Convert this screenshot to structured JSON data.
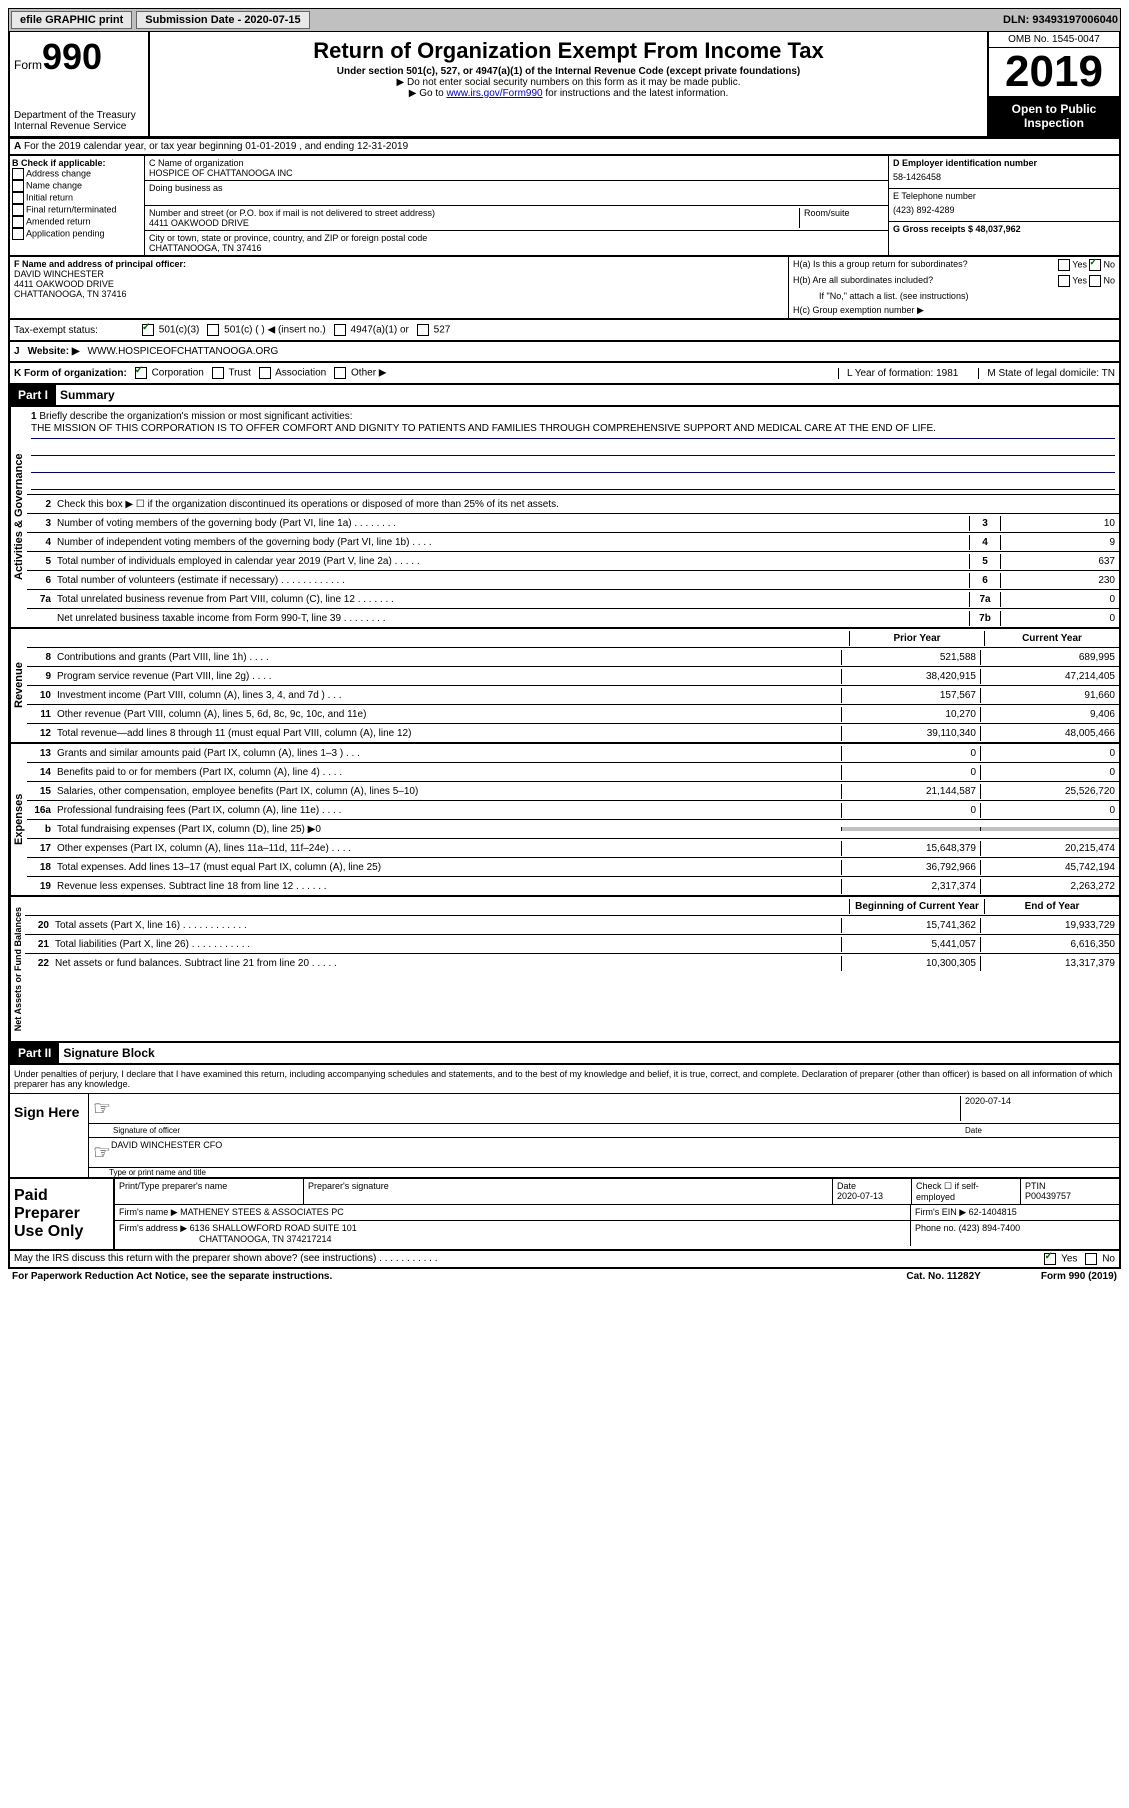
{
  "top_bar": {
    "efile": "efile GRAPHIC print",
    "submission_label": "Submission Date - 2020-07-15",
    "dln": "DLN: 93493197006040"
  },
  "header": {
    "form_label": "Form",
    "form_number": "990",
    "title": "Return of Organization Exempt From Income Tax",
    "subtitle": "Under section 501(c), 527, or 4947(a)(1) of the Internal Revenue Code (except private foundations)",
    "instr1": "▶ Do not enter social security numbers on this form as it may be made public.",
    "instr2_pre": "▶ Go to ",
    "instr2_link": "www.irs.gov/Form990",
    "instr2_post": " for instructions and the latest information.",
    "dept": "Department of the Treasury\nInternal Revenue Service",
    "omb": "OMB No. 1545-0047",
    "year": "2019",
    "open_public": "Open to Public Inspection"
  },
  "section_a": "For the 2019 calendar year, or tax year beginning 01-01-2019    , and ending 12-31-2019",
  "section_b": {
    "label": "B Check if applicable:",
    "opts": [
      "Address change",
      "Name change",
      "Initial return",
      "Final return/terminated",
      "Amended return",
      "Application pending"
    ]
  },
  "section_c": {
    "name_label": "C Name of organization",
    "name": "HOSPICE OF CHATTANOOGA INC",
    "dba_label": "Doing business as",
    "addr_label": "Number and street (or P.O. box if mail is not delivered to street address)",
    "room_label": "Room/suite",
    "addr": "4411 OAKWOOD DRIVE",
    "city_label": "City or town, state or province, country, and ZIP or foreign postal code",
    "city": "CHATTANOOGA, TN  37416"
  },
  "section_d": {
    "ein_label": "D Employer identification number",
    "ein": "58-1426458",
    "phone_label": "E Telephone number",
    "phone": "(423) 892-4289",
    "gross_label": "G Gross receipts $ 48,037,962"
  },
  "section_f": {
    "label": "F  Name and address of principal officer:",
    "name": "DAVID WINCHESTER",
    "addr1": "4411 OAKWOOD DRIVE",
    "addr2": "CHATTANOOGA, TN  37416"
  },
  "section_h": {
    "ha": "H(a)  Is this a group return for subordinates?",
    "hb": "H(b)  Are all subordinates included?",
    "hb_note": "If \"No,\" attach a list. (see instructions)",
    "hc": "H(c)  Group exemption number ▶",
    "yes": "Yes",
    "no": "No"
  },
  "tax_exempt": {
    "label": "Tax-exempt status:",
    "o1": "501(c)(3)",
    "o2": "501(c) (   ) ◀ (insert no.)",
    "o3": "4947(a)(1) or",
    "o4": "527"
  },
  "website": {
    "label": "Website: ▶",
    "value": "WWW.HOSPICEOFCHATTANOOGA.ORG"
  },
  "form_org": {
    "k_label": "K Form of organization:",
    "corp": "Corporation",
    "trust": "Trust",
    "assoc": "Association",
    "other": "Other ▶",
    "l_label": "L Year of formation: 1981",
    "m_label": "M State of legal domicile: TN"
  },
  "part1": {
    "header": "Part I",
    "title": "Summary",
    "vert_activities": "Activities & Governance",
    "vert_revenue": "Revenue",
    "vert_expenses": "Expenses",
    "vert_netassets": "Net Assets or Fund Balances",
    "line1_label": "Briefly describe the organization's mission or most significant activities:",
    "line1_text": "THE MISSION OF THIS CORPORATION IS TO OFFER COMFORT AND DIGNITY TO PATIENTS AND FAMILIES THROUGH COMPREHENSIVE SUPPORT AND MEDICAL CARE AT THE END OF LIFE.",
    "line2": "Check this box ▶ ☐  if the organization discontinued its operations or disposed of more than 25% of its net assets.",
    "lines_ag": [
      {
        "n": "3",
        "t": "Number of voting members of the governing body (Part VI, line 1a)   .    .    .    .    .    .    .    .",
        "b": "3",
        "v": "10"
      },
      {
        "n": "4",
        "t": "Number of independent voting members of the governing body (Part VI, line 1b)   .    .    .    .",
        "b": "4",
        "v": "9"
      },
      {
        "n": "5",
        "t": "Total number of individuals employed in calendar year 2019 (Part V, line 2a)   .    .    .    .    .",
        "b": "5",
        "v": "637"
      },
      {
        "n": "6",
        "t": "Total number of volunteers (estimate if necessary)    .    .    .    .    .    .    .    .    .    .    .    .",
        "b": "6",
        "v": "230"
      },
      {
        "n": "7a",
        "t": "Total unrelated business revenue from Part VIII, column (C), line 12   .    .    .    .    .    .    .",
        "b": "7a",
        "v": "0"
      },
      {
        "n": "",
        "t": "Net unrelated business taxable income from Form 990-T, line 39   .    .    .    .    .    .    .    .",
        "b": "7b",
        "v": "0"
      }
    ],
    "col_prior": "Prior Year",
    "col_current": "Current Year",
    "revenue_lines": [
      {
        "n": "8",
        "t": "Contributions and grants (Part VIII, line 1h)   .    .    .    .",
        "p": "521,588",
        "c": "689,995"
      },
      {
        "n": "9",
        "t": "Program service revenue (Part VIII, line 2g)   .    .    .    .",
        "p": "38,420,915",
        "c": "47,214,405"
      },
      {
        "n": "10",
        "t": "Investment income (Part VIII, column (A), lines 3, 4, and 7d )    .    .    .",
        "p": "157,567",
        "c": "91,660"
      },
      {
        "n": "11",
        "t": "Other revenue (Part VIII, column (A), lines 5, 6d, 8c, 9c, 10c, and 11e)",
        "p": "10,270",
        "c": "9,406"
      },
      {
        "n": "12",
        "t": "Total revenue—add lines 8 through 11 (must equal Part VIII, column (A), line 12)",
        "p": "39,110,340",
        "c": "48,005,466"
      }
    ],
    "expense_lines": [
      {
        "n": "13",
        "t": "Grants and similar amounts paid (Part IX, column (A), lines 1–3 )   .    .    .",
        "p": "0",
        "c": "0"
      },
      {
        "n": "14",
        "t": "Benefits paid to or for members (Part IX, column (A), line 4)   .    .    .    .",
        "p": "0",
        "c": "0"
      },
      {
        "n": "15",
        "t": "Salaries, other compensation, employee benefits (Part IX, column (A), lines 5–10)",
        "p": "21,144,587",
        "c": "25,526,720"
      },
      {
        "n": "16a",
        "t": "Professional fundraising fees (Part IX, column (A), line 11e)   .    .    .    .",
        "p": "0",
        "c": "0"
      },
      {
        "n": "b",
        "t": "Total fundraising expenses (Part IX, column (D), line 25) ▶0",
        "p": "",
        "c": "",
        "shaded": true
      },
      {
        "n": "17",
        "t": "Other expenses (Part IX, column (A), lines 11a–11d, 11f–24e)   .    .    .    .",
        "p": "15,648,379",
        "c": "20,215,474"
      },
      {
        "n": "18",
        "t": "Total expenses. Add lines 13–17 (must equal Part IX, column (A), line 25)",
        "p": "36,792,966",
        "c": "45,742,194"
      },
      {
        "n": "19",
        "t": "Revenue less expenses. Subtract line 18 from line 12   .    .    .    .    .    .",
        "p": "2,317,374",
        "c": "2,263,272"
      }
    ],
    "col_begin": "Beginning of Current Year",
    "col_end": "End of Year",
    "net_lines": [
      {
        "n": "20",
        "t": "Total assets (Part X, line 16)   .    .    .    .    .    .    .    .    .    .    .    .",
        "p": "15,741,362",
        "c": "19,933,729"
      },
      {
        "n": "21",
        "t": "Total liabilities (Part X, line 26)   .    .    .    .    .    .    .    .    .    .    .",
        "p": "5,441,057",
        "c": "6,616,350"
      },
      {
        "n": "22",
        "t": "Net assets or fund balances. Subtract line 21 from line 20   .    .    .    .    .",
        "p": "10,300,305",
        "c": "13,317,379"
      }
    ]
  },
  "part2": {
    "header": "Part II",
    "title": "Signature Block",
    "declaration": "Under penalties of perjury, I declare that I have examined this return, including accompanying schedules and statements, and to the best of my knowledge and belief, it is true, correct, and complete. Declaration of preparer (other than officer) is based on all information of which preparer has any knowledge.",
    "sign_here": "Sign Here",
    "sig_officer": "Signature of officer",
    "sig_date_label": "Date",
    "sig_date": "2020-07-14",
    "officer_name": "DAVID WINCHESTER  CFO",
    "type_name": "Type or print name and title",
    "paid_label": "Paid Preparer Use Only",
    "prep_name_label": "Print/Type preparer's name",
    "prep_sig_label": "Preparer's signature",
    "prep_date_label": "Date",
    "prep_date": "2020-07-13",
    "self_emp": "Check ☐  if self-employed",
    "ptin_label": "PTIN",
    "ptin": "P00439757",
    "firm_name_label": "Firm's name    ▶",
    "firm_name": "MATHENEY STEES & ASSOCIATES PC",
    "firm_ein_label": "Firm's EIN ▶",
    "firm_ein": "62-1404815",
    "firm_addr_label": "Firm's address ▶",
    "firm_addr1": "6136 SHALLOWFORD ROAD SUITE 101",
    "firm_addr2": "CHATTANOOGA, TN  374217214",
    "firm_phone_label": "Phone no.",
    "firm_phone": "(423) 894-7400",
    "discuss": "May the IRS discuss this return with the preparer shown above? (see instructions)    .    .    .    .    .    .    .    .    .    .    .",
    "yes": "Yes",
    "no": "No"
  },
  "footer": {
    "paperwork": "For Paperwork Reduction Act Notice, see the separate instructions.",
    "cat": "Cat. No. 11282Y",
    "form": "Form 990 (2019)"
  }
}
